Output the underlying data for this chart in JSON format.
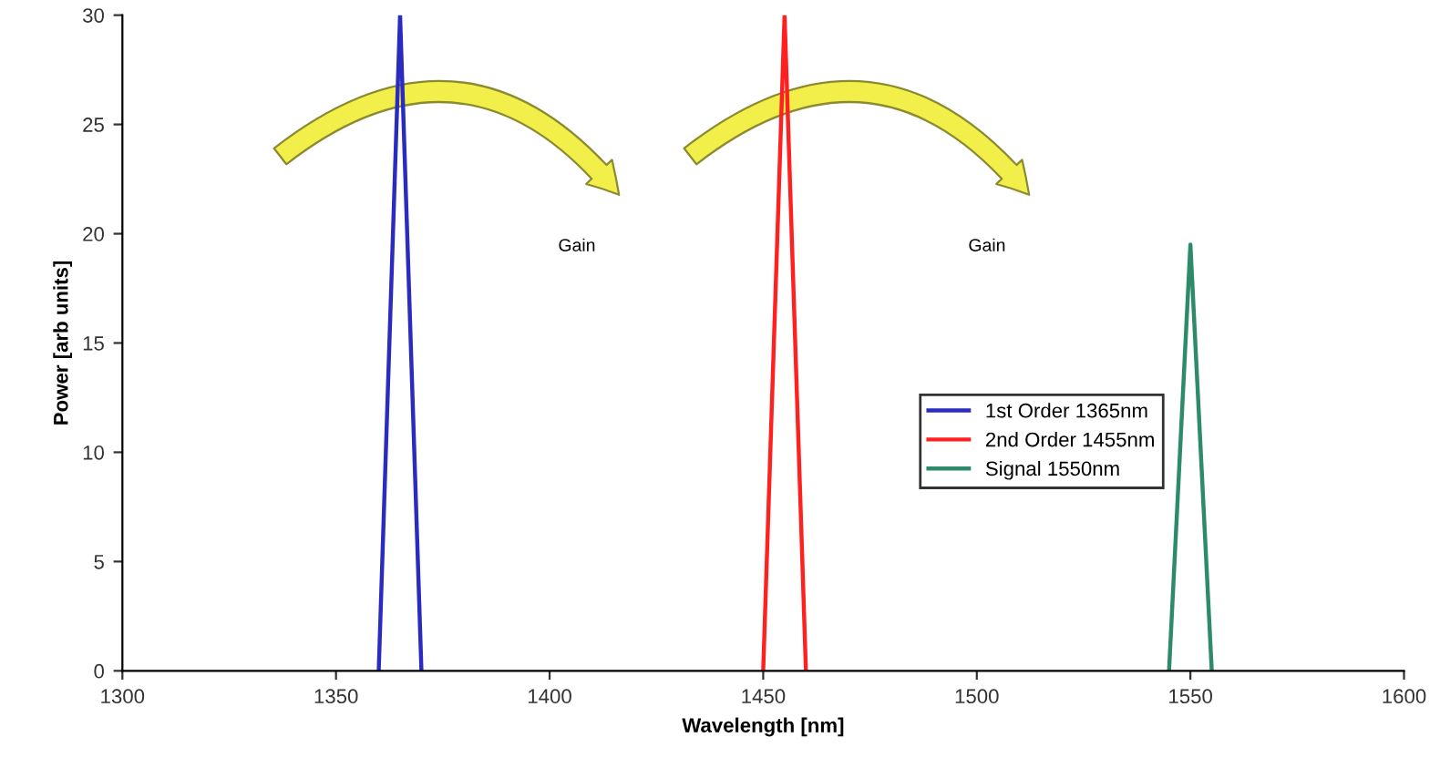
{
  "chart_data": {
    "type": "line",
    "xlabel": "Wavelength [nm]",
    "ylabel": "Power [arb units]",
    "series": [
      {
        "name": "1st Order 1365nm",
        "color": "#2b2bbf",
        "x": [
          1360,
          1365,
          1370
        ],
        "values": [
          0,
          30,
          0
        ]
      },
      {
        "name": "2nd Order 1455nm",
        "color": "#ff2020",
        "x": [
          1450,
          1455,
          1460
        ],
        "values": [
          0,
          30,
          0
        ]
      },
      {
        "name": "Signal 1550nm",
        "color": "#2e8b6a",
        "x": [
          1545,
          1550,
          1555
        ],
        "values": [
          0,
          19.5,
          0
        ]
      }
    ],
    "annotations": [
      "Gain",
      "Gain"
    ],
    "xlim": [
      1300,
      1600
    ],
    "xticks": [
      1300,
      1350,
      1400,
      1450,
      1500,
      1550,
      1600
    ],
    "ylim": [
      0,
      30
    ],
    "yticks": [
      0,
      5,
      10,
      15,
      20,
      25,
      30
    ],
    "legend": "right",
    "grid": false,
    "marker": "none",
    "line_style": "solid"
  }
}
